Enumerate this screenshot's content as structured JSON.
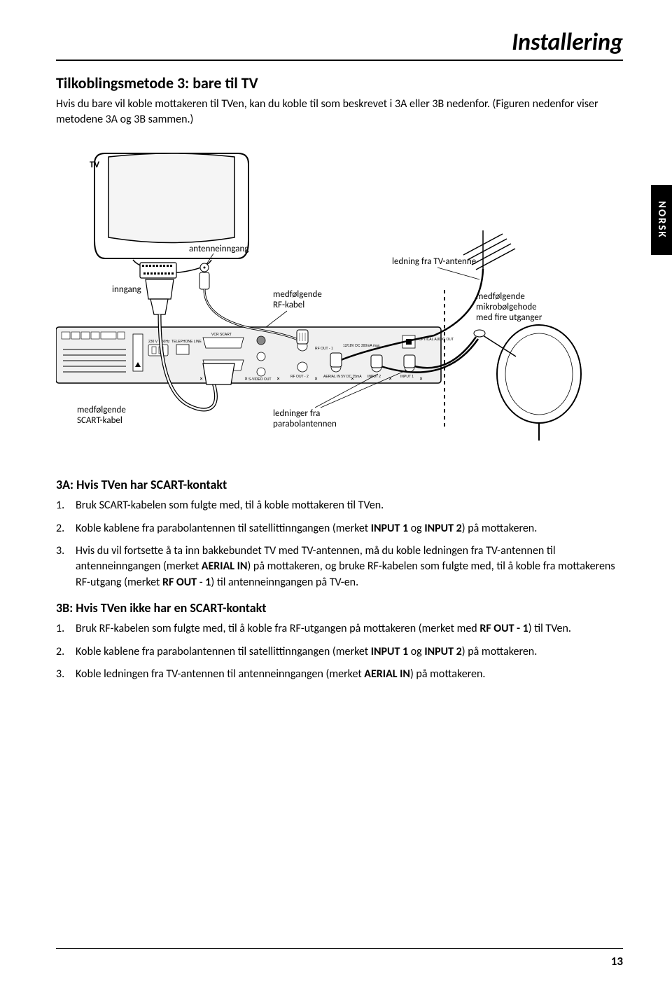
{
  "page": {
    "title": "Installering",
    "section_heading": "Tilkoblingsmetode 3: bare til TV",
    "intro": "Hvis du bare vil koble mottakeren til TVen, kan du koble til som beskrevet i 3A eller 3B nedenfor. (Figuren nedenfor viser metodene 3A og 3B sammen.)",
    "side_tab": "NORSK",
    "page_number": "13"
  },
  "diagram": {
    "labels": {
      "tv": "TV",
      "inngang": "inngang",
      "antenneinngang": "antenneinngang",
      "ledning_tv_antenne": "ledning fra TV-antenne",
      "rf_kabel_l1": "medfølgende",
      "rf_kabel_l2": "RF-kabel",
      "mikro_l1": "medfølgende",
      "mikro_l2": "mikrobølgehode",
      "mikro_l3": "med fire utganger",
      "scart_l1": "medfølgende",
      "scart_l2": "SCART-kabel",
      "parabol_l1": "ledninger fra",
      "parabol_l2": "parabolantennen"
    },
    "ports": {
      "telephone": "TELEPHONE LINE",
      "vcr_scart": "VCR SCART",
      "tv_scart": "TV SCART",
      "svideo": "S-VIDEO OUT",
      "optical": "OPTICAL AUDIO OUT",
      "rfout1": "RF OUT - 1",
      "rfout2": "RF OUT - 2",
      "dc": "12/18V DC 300mA max.",
      "aerial": "AERIAL IN 5V DC 75mA",
      "input1": "INPUT 1",
      "input2": "INPUT 2",
      "power": "230 V ~ 50Hz"
    }
  },
  "section3a": {
    "heading": "3A: Hvis TVen har SCART-kontakt",
    "steps": [
      "Bruk SCART-kabelen som fulgte med, til å koble mottakeren til TVen.",
      "Koble kablene fra parabolantennen til satellittinngangen (merket <b>INPUT 1</b> og <b>INPUT 2</b>) på mottakeren.",
      "Hvis du vil fortsette å ta inn bakkebundet TV med TV-antennen, må du koble ledningen fra TV-antennen til antenneinngangen (merket <b>AERIAL IN</b>) på mottakeren, og bruke RF-kabelen som fulgte med, til å koble fra mottakerens RF-utgang (merket <b>RF OUT</b> - <b>1</b>) til antenneinngangen på TV-en."
    ]
  },
  "section3b": {
    "heading": "3B: Hvis TVen ikke har en SCART-kontakt",
    "steps": [
      "Bruk RF-kabelen som fulgte med, til å koble fra RF-utgangen på mottakeren (merket med <b>RF OUT - 1</b>) til TVen.",
      "Koble kablene fra parabolantennen til satellittinngangen (merket <b>INPUT 1</b> og <b>INPUT 2</b>) på mottakeren.",
      "Koble ledningen fra TV-antennen til antenneinngangen (merket <b>AERIAL IN</b>) på mottakeren."
    ]
  }
}
